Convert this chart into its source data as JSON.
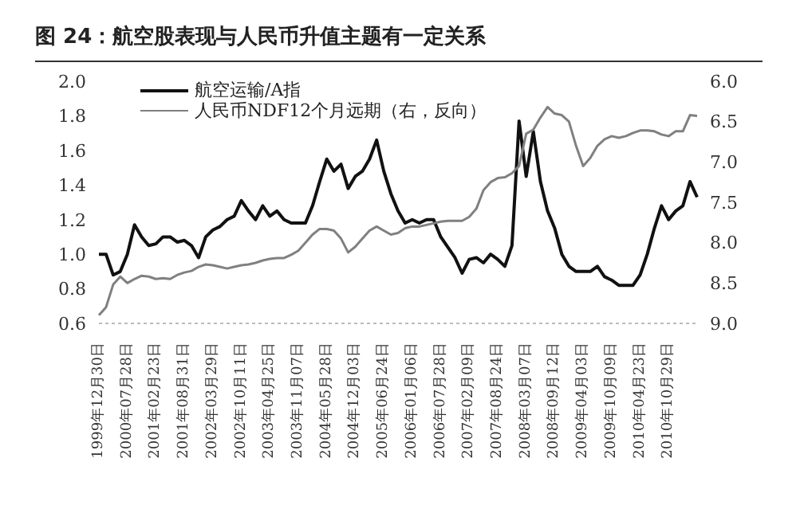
{
  "chart_data": {
    "type": "line",
    "title": "图 24：航空股表现与人民币升值主题有一定关系",
    "categories": [
      "1999年12月30日",
      null,
      null,
      null,
      "2000年07月28日",
      null,
      null,
      null,
      "2001年02月23日",
      null,
      null,
      null,
      "2001年08月31日",
      null,
      null,
      null,
      "2002年03月29日",
      null,
      null,
      null,
      "2002年10月11日",
      null,
      null,
      null,
      "2003年04月25日",
      null,
      null,
      null,
      "2003年11月07日",
      null,
      null,
      null,
      "2004年05月28日",
      null,
      null,
      null,
      "2004年12月03日",
      null,
      null,
      null,
      "2005年06月24日",
      null,
      null,
      null,
      "2006年01月06日",
      null,
      null,
      null,
      "2006年07月28日",
      null,
      null,
      null,
      "2007年02月09日",
      null,
      null,
      null,
      "2007年08月24日",
      null,
      null,
      null,
      "2008年03月07日",
      null,
      null,
      null,
      "2008年09月12日",
      null,
      null,
      null,
      "2009年04月03日",
      null,
      null,
      null,
      "2009年10月09日",
      null,
      null,
      null,
      "2010年04月23日",
      null,
      null,
      null,
      "2010年10月29日",
      null,
      null,
      null,
      null
    ],
    "series": [
      {
        "name": "航空运输/A指",
        "color": "#111111",
        "values": [
          1.0,
          1.0,
          0.88,
          0.9,
          1.0,
          1.17,
          1.1,
          1.05,
          1.06,
          1.1,
          1.1,
          1.07,
          1.08,
          1.05,
          0.98,
          1.1,
          1.14,
          1.16,
          1.2,
          1.22,
          1.31,
          1.25,
          1.2,
          1.28,
          1.22,
          1.25,
          1.2,
          1.18,
          1.18,
          1.18,
          1.28,
          1.42,
          1.55,
          1.48,
          1.52,
          1.38,
          1.45,
          1.48,
          1.55,
          1.66,
          1.48,
          1.35,
          1.25,
          1.18,
          1.2,
          1.18,
          1.2,
          1.2,
          1.1,
          1.04,
          0.98,
          0.89,
          0.97,
          0.98,
          0.95,
          1.0,
          0.97,
          0.93,
          1.05,
          1.77,
          1.45,
          1.71,
          1.42,
          1.25,
          1.15,
          1.0,
          0.93,
          0.9,
          0.9,
          0.9,
          0.93,
          0.87,
          0.85,
          0.82,
          0.82,
          0.82,
          0.88,
          1.0,
          1.15,
          1.28,
          1.2,
          1.25,
          1.28,
          1.42,
          1.33
        ]
      },
      {
        "name": "人民币NDF12个月远期（右，反向）",
        "color": "#808080",
        "axis": "y2",
        "values": [
          8.9,
          8.8,
          8.52,
          8.42,
          8.5,
          8.45,
          8.41,
          8.42,
          8.45,
          8.44,
          8.45,
          8.4,
          8.37,
          8.35,
          8.3,
          8.27,
          8.28,
          8.3,
          8.32,
          8.3,
          8.28,
          8.27,
          8.25,
          8.22,
          8.2,
          8.19,
          8.19,
          8.15,
          8.1,
          8.0,
          7.9,
          7.83,
          7.83,
          7.85,
          7.95,
          8.12,
          8.05,
          7.95,
          7.85,
          7.8,
          7.85,
          7.9,
          7.88,
          7.82,
          7.8,
          7.8,
          7.78,
          7.76,
          7.74,
          7.73,
          7.73,
          7.73,
          7.68,
          7.58,
          7.35,
          7.25,
          7.2,
          7.19,
          7.14,
          7.05,
          6.65,
          6.6,
          6.45,
          6.32,
          6.4,
          6.42,
          6.5,
          6.8,
          7.05,
          6.95,
          6.8,
          6.72,
          6.68,
          6.7,
          6.68,
          6.64,
          6.61,
          6.61,
          6.62,
          6.66,
          6.68,
          6.62,
          6.62,
          6.42,
          6.43
        ]
      }
    ],
    "ylim": [
      0.6,
      2.0
    ],
    "yticks": [
      0.6,
      0.8,
      {
        "value": 1,
        "label": "1.0"
      },
      1.2,
      1.4,
      1.6,
      1.8,
      {
        "value": 2,
        "label": "2.0"
      }
    ],
    "y2lim": [
      9,
      6
    ],
    "y2ticks": [
      {
        "value": 9,
        "label": "9.0"
      },
      8.5,
      {
        "value": 8,
        "label": "8.0"
      },
      7.5,
      {
        "value": 7,
        "label": "7.0"
      },
      6.5,
      {
        "value": 6,
        "label": "6.0"
      }
    ],
    "legend": "top left",
    "grid": false,
    "marker": "none",
    "line_style": "solid"
  }
}
